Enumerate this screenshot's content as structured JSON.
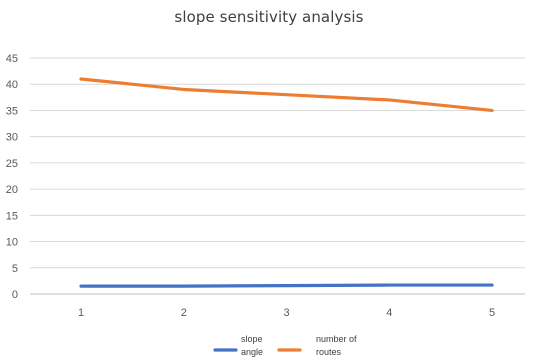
{
  "chart_data": {
    "type": "line",
    "title": "slope sensitivity analysis",
    "xlabel": "",
    "ylabel": "",
    "x": [
      1,
      2,
      3,
      4,
      5
    ],
    "ylim": [
      0,
      45
    ],
    "yticks": [
      0,
      5,
      10,
      15,
      20,
      25,
      30,
      35,
      40,
      45
    ],
    "grid": true,
    "legend": "bottom",
    "series": [
      {
        "name": "slope angle",
        "color": "#4472C4",
        "values": [
          1.5,
          1.5,
          1.6,
          1.7,
          1.7
        ]
      },
      {
        "name": "number of routes",
        "color": "#ED7D31",
        "values": [
          41,
          39,
          38,
          37,
          35
        ]
      }
    ]
  }
}
